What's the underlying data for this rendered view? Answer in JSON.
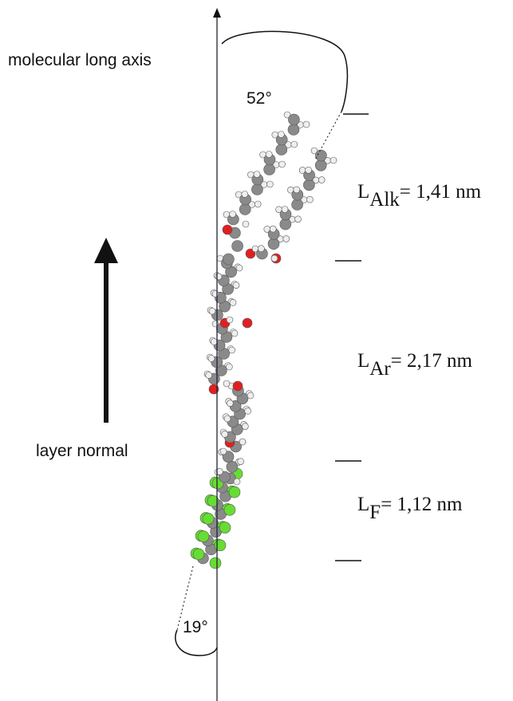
{
  "axis_label": "molecular long axis",
  "layer_label": "layer normal",
  "angles": {
    "top": "52°",
    "bottom": "19°"
  },
  "lengths": [
    {
      "symbol": "L",
      "subscript": "Alk",
      "value": "= 1,41 nm"
    },
    {
      "symbol": "L",
      "subscript": "Ar",
      "value": "= 2,17 nm"
    },
    {
      "symbol": "L",
      "subscript": "F",
      "value": "= 1,12 nm"
    }
  ]
}
